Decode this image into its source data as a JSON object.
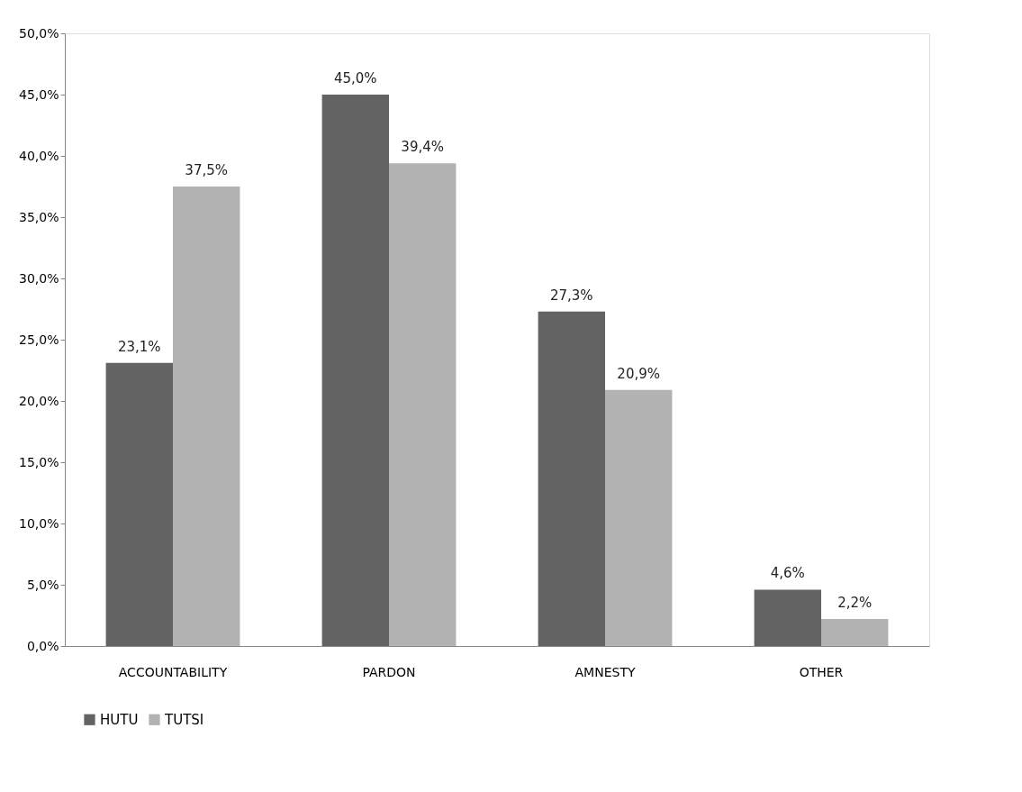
{
  "chart_data": {
    "type": "bar",
    "categories": [
      "ACCOUNTABILITY",
      "PARDON",
      "AMNESTY",
      "OTHER"
    ],
    "series": [
      {
        "name": "HUTU",
        "color": "#636363",
        "values": [
          23.1,
          45.0,
          27.3,
          4.6
        ],
        "value_labels": [
          "23,1%",
          "45,0%",
          "27,3%",
          "4,6%"
        ]
      },
      {
        "name": "TUTSI",
        "color": "#b2b2b2",
        "values": [
          37.5,
          39.4,
          20.9,
          2.2
        ],
        "value_labels": [
          "37,5%",
          "39,4%",
          "20,9%",
          "2,2%"
        ]
      }
    ],
    "ylim": [
      0,
      50
    ],
    "yticks": [
      {
        "value": 0,
        "label": "0,0%"
      },
      {
        "value": 5,
        "label": "5,0%"
      },
      {
        "value": 10,
        "label": "10,0%"
      },
      {
        "value": 15,
        "label": "15,0%"
      },
      {
        "value": 20,
        "label": "20,0%"
      },
      {
        "value": 25,
        "label": "25,0%"
      },
      {
        "value": 30,
        "label": "30,0%"
      },
      {
        "value": 35,
        "label": "35,0%"
      },
      {
        "value": 40,
        "label": "40,0%"
      },
      {
        "value": 45,
        "label": "45,0%"
      },
      {
        "value": 50,
        "label": "50,0%"
      }
    ],
    "grid": false,
    "legend": "bottom"
  }
}
